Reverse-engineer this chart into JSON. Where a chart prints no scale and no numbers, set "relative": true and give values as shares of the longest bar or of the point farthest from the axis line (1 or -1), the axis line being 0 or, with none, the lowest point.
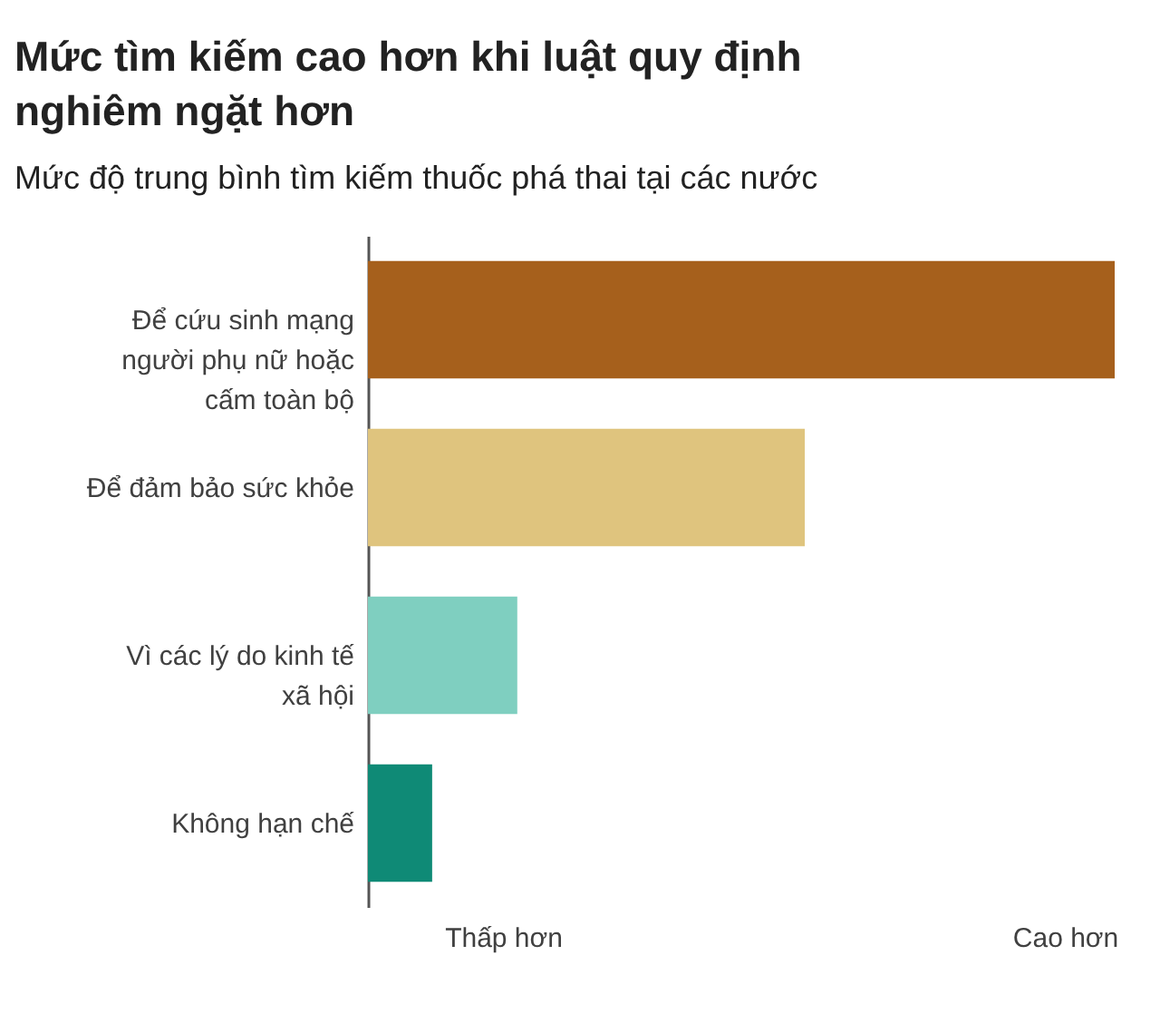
{
  "chart_data": {
    "type": "bar",
    "orientation": "horizontal",
    "relative": true,
    "title": "Mức tìm kiếm cao hơn khi luật quy định nghiêm ngặt hơn",
    "subtitle": "Mức độ trung bình tìm kiếm thuốc phá thai tại các nước",
    "categories": [
      "Để cứu sinh mạng người phụ nữ hoặc cấm toàn bộ",
      "Để đảm bảo sức khỏe",
      "Vì các lý do kinh tế xã hội",
      "Không hạn chế"
    ],
    "values": [
      1,
      0.585,
      0.2,
      0.086
    ],
    "colors": [
      "#a6601c",
      "#dfc47e",
      "#7fcfc0",
      "#0f8a76"
    ],
    "annotations": [
      "Thấp hơn",
      "Cao hơn"
    ],
    "grid": false,
    "legend": false
  }
}
